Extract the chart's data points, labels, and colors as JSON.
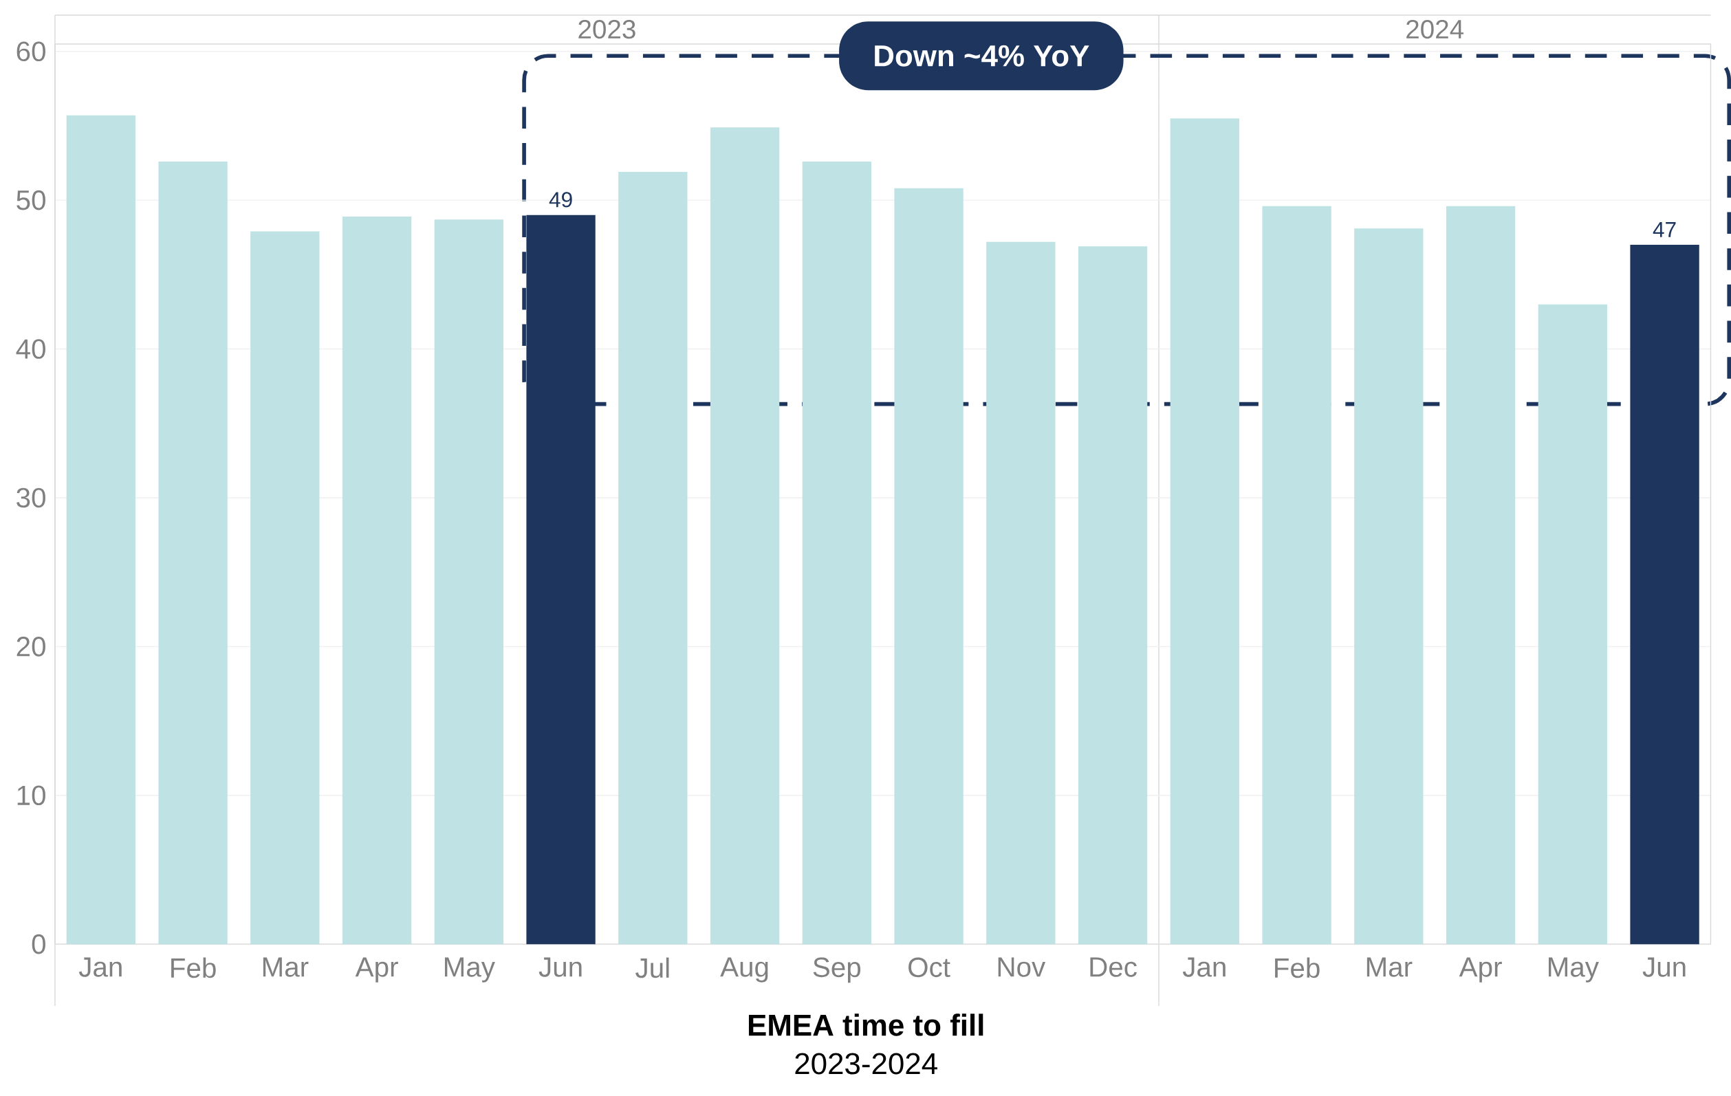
{
  "chart_data": {
    "type": "bar",
    "title": "EMEA time to fill",
    "subtitle": "2023-2024",
    "categories": [
      "Jan",
      "Feb",
      "Mar",
      "Apr",
      "May",
      "Jun",
      "Jul",
      "Aug",
      "Sep",
      "Oct",
      "Nov",
      "Dec",
      "Jan",
      "Feb",
      "Mar",
      "Apr",
      "May",
      "Jun"
    ],
    "values": [
      55.7,
      52.6,
      47.9,
      48.9,
      48.7,
      49,
      51.9,
      54.9,
      52.6,
      50.8,
      47.2,
      46.9,
      55.5,
      49.6,
      48.1,
      49.6,
      43.0,
      47
    ],
    "colors": [
      "#bfe3e4",
      "#bfe3e4",
      "#bfe3e4",
      "#bfe3e4",
      "#bfe3e4",
      "#1e355e",
      "#bfe3e4",
      "#bfe3e4",
      "#bfe3e4",
      "#bfe3e4",
      "#bfe3e4",
      "#bfe3e4",
      "#bfe3e4",
      "#bfe3e4",
      "#bfe3e4",
      "#bfe3e4",
      "#bfe3e4",
      "#1e355e"
    ],
    "value_labels": [
      null,
      null,
      null,
      null,
      null,
      "49",
      null,
      null,
      null,
      null,
      null,
      null,
      null,
      null,
      null,
      null,
      null,
      "47"
    ],
    "ylim": [
      0,
      60.5
    ],
    "yticks": [
      0,
      10,
      20,
      30,
      40,
      50,
      60
    ],
    "grid": "y",
    "annotations": [
      "2023",
      "2024",
      "Down ~4% YoY"
    ]
  }
}
